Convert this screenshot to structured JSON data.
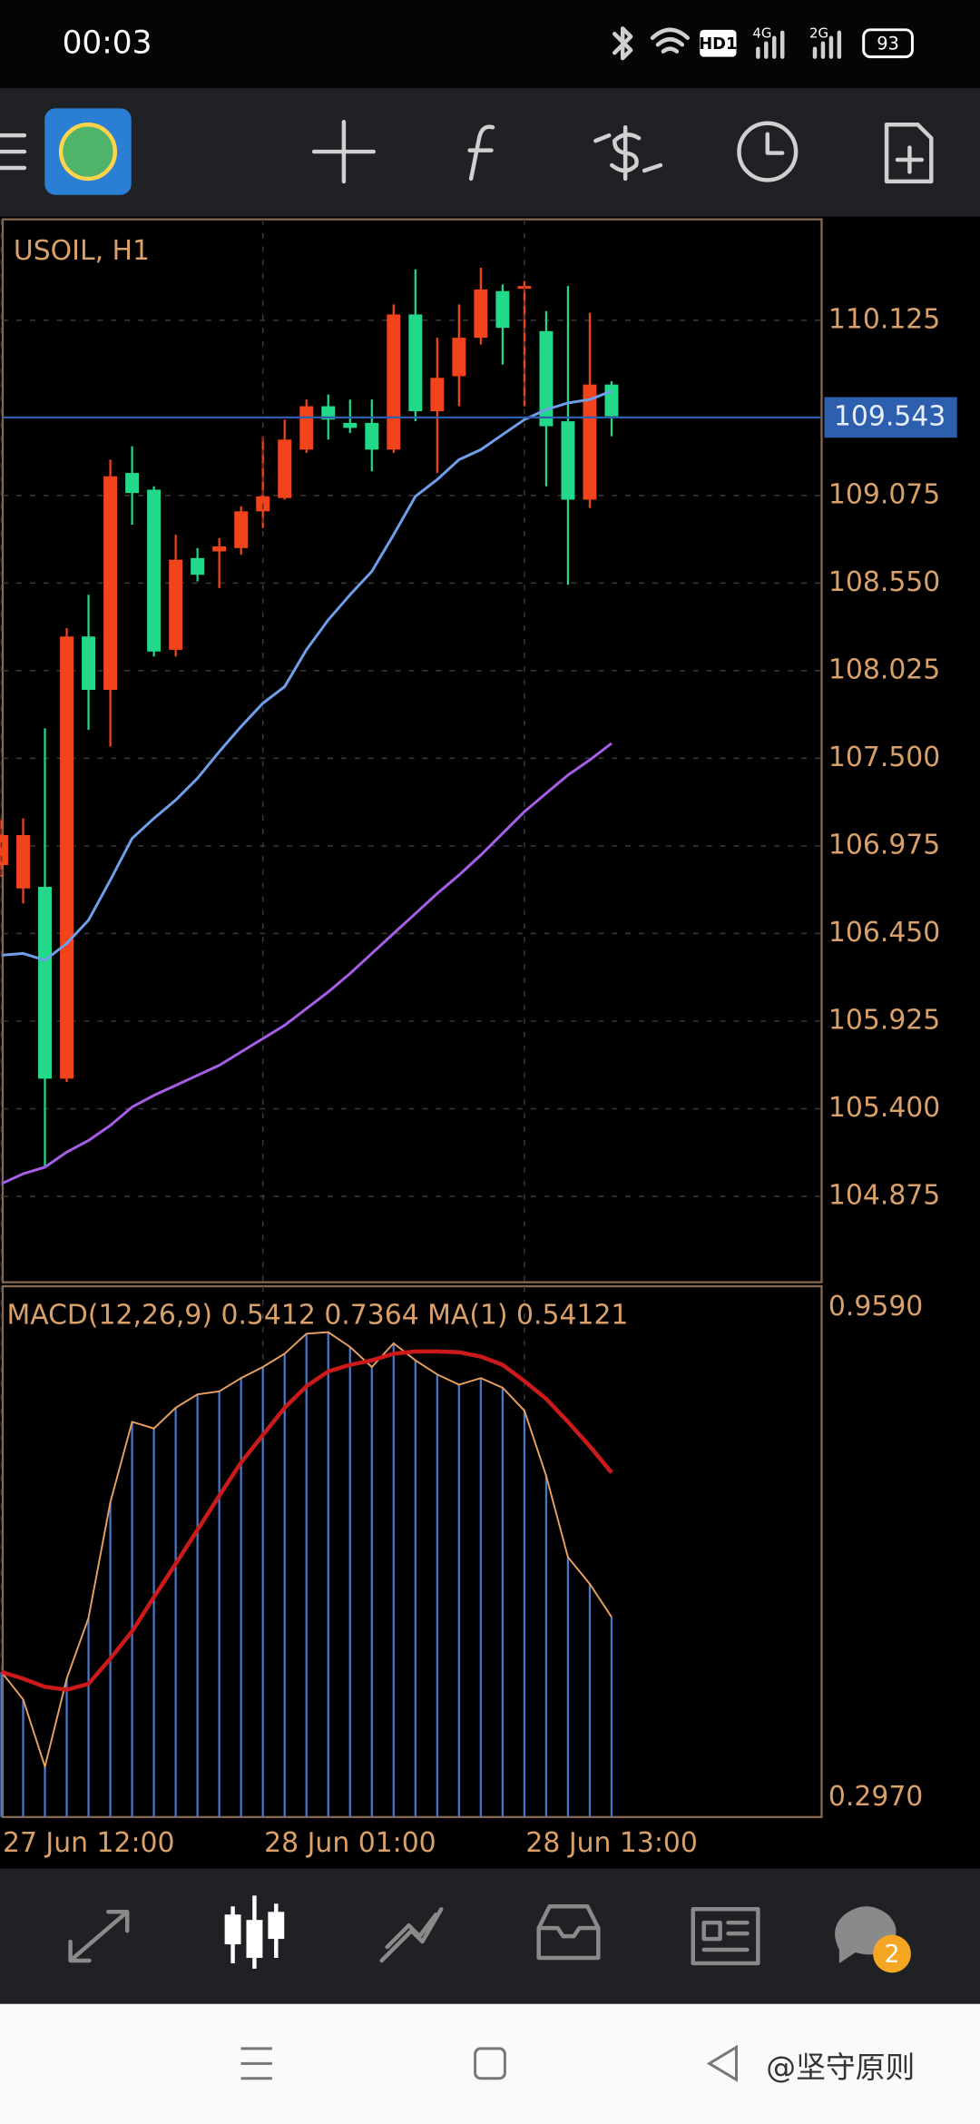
{
  "status_bar": {
    "time": "00:03",
    "network_badge": "HD1",
    "network_1": "4G",
    "network_2": "2G",
    "battery": "93"
  },
  "chart_data": [
    {
      "type": "candlestick",
      "title": "USOIL, H1",
      "open": [
        107.04,
        107.04,
        105.58,
        108.23,
        107.91,
        109.19,
        109.09,
        108.14,
        108.69,
        108.6,
        108.77,
        108.98,
        109.07,
        109.41,
        109.61,
        109.53,
        109.48,
        109.35,
        110.16,
        109.58,
        109.78,
        110.02,
        110.31,
        110.08,
        110.33,
        109.49,
        109.05,
        109.74,
        109.55
      ],
      "high": [
        107.14,
        107.14,
        107.68,
        108.28,
        108.48,
        109.29,
        109.37,
        109.13,
        108.84,
        108.76,
        108.82,
        109.01,
        109.43,
        109.53,
        109.65,
        109.68,
        109.65,
        109.65,
        110.22,
        110.43,
        110.02,
        110.22,
        110.44,
        110.34,
        110.36,
        110.18,
        110.33,
        110.17,
        109.76
      ],
      "low": [
        106.79,
        106.63,
        105.05,
        105.56,
        107.67,
        107.57,
        108.9,
        108.11,
        108.11,
        108.56,
        108.52,
        108.72,
        108.88,
        109.05,
        109.33,
        109.41,
        109.45,
        109.22,
        109.33,
        109.52,
        109.21,
        109.61,
        109.98,
        109.86,
        109.61,
        109.13,
        108.54,
        109.0,
        109.43
      ],
      "close": [
        106.86,
        106.72,
        106.73,
        105.58,
        108.23,
        107.91,
        109.21,
        109.11,
        108.15,
        108.7,
        108.74,
        108.76,
        108.98,
        109.06,
        109.35,
        109.61,
        109.51,
        109.51,
        109.35,
        110.16,
        109.58,
        109.79,
        110.02,
        110.3,
        110.32,
        110.06,
        109.52,
        109.05,
        109.74
      ],
      "up_color": "#22d98a",
      "down_color": "#f2441c",
      "lines": [
        {
          "color": "#6f9fe8",
          "values": [
            106.32,
            106.33,
            106.29,
            106.39,
            106.53,
            106.77,
            107.02,
            107.14,
            107.25,
            107.38,
            107.54,
            107.69,
            107.83,
            107.93,
            108.15,
            108.33,
            108.48,
            108.62,
            108.84,
            109.07,
            109.17,
            109.29,
            109.35,
            109.44,
            109.53,
            109.59,
            109.63,
            109.65,
            109.7
          ]
        },
        {
          "color": "#a75ee6",
          "values": [
            104.95,
            105.01,
            105.05,
            105.14,
            105.21,
            105.3,
            105.41,
            105.48,
            105.54,
            105.6,
            105.66,
            105.74,
            105.82,
            105.9,
            106.0,
            106.1,
            106.21,
            106.33,
            106.45,
            106.57,
            106.69,
            106.8,
            106.92,
            107.05,
            107.18,
            107.29,
            107.4,
            107.49,
            107.59
          ]
        }
      ],
      "current_price": 109.543,
      "current_color": "#2d5fae",
      "ylim": [
        104.36,
        110.73
      ],
      "yticks": [
        110.125,
        109.075,
        {
          "value": 108.55,
          "label": "108.550"
        },
        108.025,
        {
          "value": 107.5,
          "label": "107.500"
        },
        106.975,
        {
          "value": 106.45,
          "label": "106.450"
        },
        105.925,
        {
          "value": 105.4,
          "label": "105.400"
        },
        104.875
      ],
      "grid": true
    },
    {
      "type": "macd",
      "title": "MACD(12,26,9) 0.5412 0.7364 MA(1) 0.54121",
      "categories": [
        "27 Jun 12:00",
        null,
        null,
        null,
        null,
        null,
        null,
        null,
        null,
        null,
        null,
        null,
        "28 Jun 01:00",
        null,
        null,
        null,
        null,
        null,
        null,
        null,
        null,
        null,
        null,
        null,
        "28 Jun 13:00",
        null,
        null,
        null,
        null
      ],
      "values": [
        0.467,
        0.43,
        0.339,
        0.458,
        0.54,
        0.696,
        0.805,
        0.796,
        0.824,
        0.842,
        0.846,
        0.864,
        0.879,
        0.897,
        0.924,
        0.926,
        0.906,
        0.879,
        0.911,
        0.888,
        0.869,
        0.855,
        0.864,
        0.851,
        0.82,
        0.732,
        0.622,
        0.586,
        0.5412
      ],
      "color": "#4a78c8",
      "outline_color": "#e8a060",
      "signal": [
        0.467,
        0.458,
        0.447,
        0.443,
        0.451,
        0.485,
        0.522,
        0.568,
        0.613,
        0.659,
        0.705,
        0.75,
        0.787,
        0.824,
        0.853,
        0.873,
        0.882,
        0.888,
        0.897,
        0.9,
        0.9,
        0.899,
        0.893,
        0.882,
        0.86,
        0.836,
        0.805,
        0.772,
        0.7364
      ],
      "signal_color": "#cc1a1a",
      "ylim": [
        0.271,
        0.988
      ],
      "yticks": [
        {
          "value": 0.959,
          "label": "0.9590"
        },
        {
          "value": 0.297,
          "label": "0.2970"
        }
      ]
    }
  ],
  "bottom_nav": {
    "badge": "2"
  },
  "watermark": "@坚守原则"
}
